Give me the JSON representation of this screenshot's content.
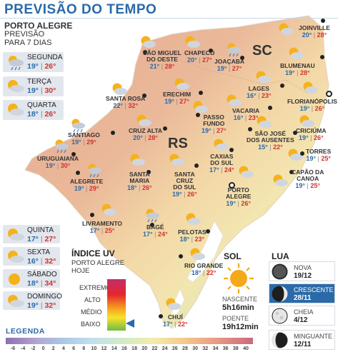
{
  "header": {
    "title": "PREVISÃO DO TEMPO"
  },
  "poa_forecast": {
    "city": "PORTO ALEGRE",
    "subtitle": "PREVISÃO",
    "subtitle2": "PARA 7 DIAS",
    "days": [
      {
        "name": "SEGUNDA",
        "min": "19°",
        "max": "26°",
        "icon": "partly-cloudy-rain-icon"
      },
      {
        "name": "TERÇA",
        "min": "19°",
        "max": "30°",
        "icon": "partly-cloudy-icon"
      },
      {
        "name": "QUARTA",
        "min": "18°",
        "max": "26°",
        "icon": "partly-cloudy-icon"
      },
      {
        "name": "QUINTA",
        "min": "17°",
        "max": "27°",
        "icon": "partly-cloudy-icon"
      },
      {
        "name": "SEXTA",
        "min": "16°",
        "max": "32°",
        "icon": "partly-cloudy-icon"
      },
      {
        "name": "SÁBADO",
        "min": "18°",
        "max": "34°",
        "icon": "sunny-icon"
      },
      {
        "name": "DOMINGO",
        "min": "19°",
        "max": "32°",
        "icon": "partly-cloudy-icon"
      }
    ]
  },
  "states": {
    "rs": "RS",
    "sc": "SC"
  },
  "cities": [
    {
      "name": "SÃO MIGUEL\nDO OESTE",
      "min": "21°",
      "max": "28°",
      "icon": "partly-cloudy-icon"
    },
    {
      "name": "CHAPECÓ",
      "min": "20°",
      "max": "27°",
      "icon": "partly-cloudy-icon"
    },
    {
      "name": "JOAÇABA",
      "min": "19°",
      "max": "27°",
      "icon": "partly-cloudy-rain-icon"
    },
    {
      "name": "JOINVILLE",
      "min": "20°",
      "max": "28°",
      "icon": "partly-cloudy-icon"
    },
    {
      "name": "BLUMENAU",
      "min": "19°",
      "max": "28°",
      "icon": "partly-cloudy-icon"
    },
    {
      "name": "LAGES",
      "min": "16°",
      "max": "23°",
      "icon": "partly-cloudy-icon"
    },
    {
      "name": "FLORIANÓPOLIS",
      "min": "19°",
      "max": "26°",
      "icon": "partly-cloudy-icon"
    },
    {
      "name": "SANTA ROSA",
      "min": "22°",
      "max": "32°",
      "icon": "partly-cloudy-icon"
    },
    {
      "name": "ERECHIM",
      "min": "19°",
      "max": "27°",
      "icon": "partly-cloudy-icon"
    },
    {
      "name": "VACARIA",
      "min": "16°",
      "max": "23°",
      "icon": "partly-cloudy-icon"
    },
    {
      "name": "PASSO\nFUNDO",
      "min": "19°",
      "max": "27°",
      "icon": "partly-cloudy-icon"
    },
    {
      "name": "SANTIAGO",
      "min": "19°",
      "max": "29°",
      "icon": "partly-cloudy-rain-icon"
    },
    {
      "name": "CRUZ ALTA",
      "min": "20°",
      "max": "28°",
      "icon": "partly-cloudy-icon"
    },
    {
      "name": "SÃO JOSÉ\nDOS AUSENTES",
      "min": "15°",
      "max": "22°",
      "icon": "partly-cloudy-icon"
    },
    {
      "name": "CRICIÚMA",
      "min": "19°",
      "max": "26°",
      "icon": "partly-cloudy-icon"
    },
    {
      "name": "TORRES",
      "min": "19°",
      "max": "25°",
      "icon": "partly-cloudy-icon"
    },
    {
      "name": "URUGUAIANA",
      "min": "19°",
      "max": "30°",
      "icon": "partly-cloudy-rain-icon"
    },
    {
      "name": "CAXIAS\nDO SUL",
      "min": "17°",
      "max": "24°",
      "icon": "partly-cloudy-icon"
    },
    {
      "name": "CAPÃO DA\nCANOA",
      "min": "19°",
      "max": "25°",
      "icon": "partly-cloudy-icon"
    },
    {
      "name": "ALEGRETE",
      "min": "19°",
      "max": "29°",
      "icon": "partly-cloudy-rain-icon"
    },
    {
      "name": "SANTA\nMARIA",
      "min": "18°",
      "max": "26°",
      "icon": "partly-cloudy-icon"
    },
    {
      "name": "SANTA\nCRUZ\nDO SUL",
      "min": "19°",
      "max": "26°",
      "icon": "partly-cloudy-icon"
    },
    {
      "name": "PORTO\nALEGRE",
      "min": "19°",
      "max": "26°",
      "icon": "partly-cloudy-icon"
    },
    {
      "name": "LIVRAMENTO",
      "min": "17°",
      "max": "25°",
      "icon": "partly-cloudy-icon"
    },
    {
      "name": "BAGÉ",
      "min": "17°",
      "max": "24°",
      "icon": "partly-cloudy-rain-icon"
    },
    {
      "name": "PELOTAS",
      "min": "18°",
      "max": "23°",
      "icon": "partly-cloudy-icon"
    },
    {
      "name": "RIO GRANDE",
      "min": "18°",
      "max": "22°",
      "icon": "partly-cloudy-icon"
    },
    {
      "name": "CHUÍ",
      "min": "17°",
      "max": "22°",
      "icon": "partly-cloudy-icon"
    }
  ],
  "uv": {
    "title": "ÍNDICE UV",
    "subtitle": "PORTO ALEGRE",
    "subtitle2": "HOJE",
    "levels": [
      "EXTREMO",
      "ALTO",
      "MÉDIO",
      "BAIXO"
    ],
    "current": "BAIXO"
  },
  "sun": {
    "title": "SOL",
    "sunrise_label": "NASCENTE",
    "sunrise": "5h16min",
    "sunset_label": "POENTE",
    "sunset": "19h12min"
  },
  "moon": {
    "title": "LUA",
    "phases": [
      {
        "name": "NOVA",
        "date": "19/12",
        "icon": "new-moon-icon",
        "active": false
      },
      {
        "name": "CRESCENTE",
        "date": "28/11",
        "icon": "crescent-moon-icon",
        "active": true
      },
      {
        "name": "CHEIA",
        "date": "4/12",
        "icon": "full-moon-icon",
        "active": false
      },
      {
        "name": "MINGUANTE",
        "date": "12/11",
        "icon": "waning-moon-icon",
        "active": false
      }
    ]
  },
  "legend": {
    "title": "LEGENDA",
    "ticks": [
      "-6",
      "-4",
      "-2",
      "0",
      "2",
      "4",
      "6",
      "8",
      "10",
      "12",
      "14",
      "16",
      "18",
      "20",
      "22",
      "24",
      "26",
      "28",
      "30",
      "32",
      "34",
      "36",
      "38",
      "40"
    ]
  },
  "colors": {
    "title_blue": "#2a6aa8",
    "min_temp": "#2a6aa8",
    "max_temp": "#d1322f",
    "map_warm": "#e6a98b",
    "map_mild": "#f6e3a8",
    "map_cool": "#cfe4b8"
  }
}
